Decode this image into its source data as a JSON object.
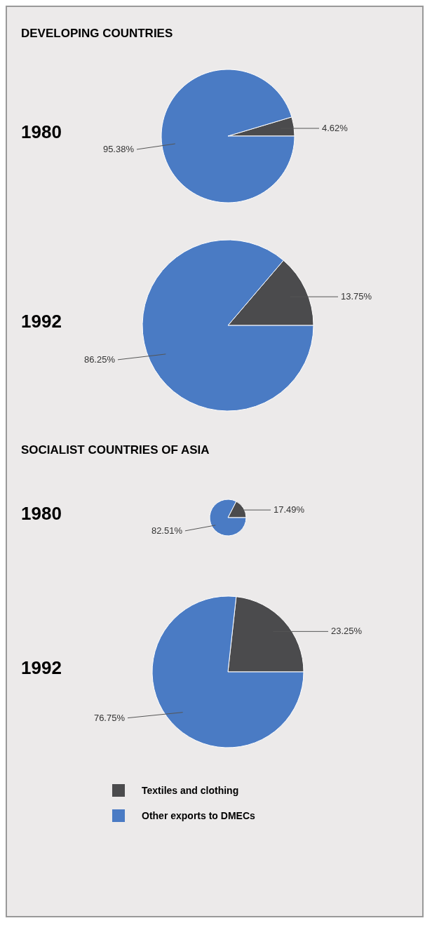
{
  "chart_data": [
    {
      "type": "pie",
      "title": "DEVELOPING COUNTRIES",
      "subtitle": "1980",
      "categories": [
        null,
        null
      ],
      "values": [
        4.62,
        95.38
      ],
      "colors": [
        "#4b4b4d",
        "#4a7bc4"
      ],
      "value_labels": [
        "4.62%",
        "95.38%"
      ],
      "legend": false
    },
    {
      "type": "pie",
      "subtitle": "1992",
      "categories": [
        null,
        null
      ],
      "values": [
        13.75,
        86.25
      ],
      "colors": [
        "#4b4b4d",
        "#4a7bc4"
      ],
      "value_labels": [
        "13.75%",
        "86.25%"
      ],
      "legend": false
    },
    {
      "type": "pie",
      "title": "SOCIALIST COUNTRIES OF ASIA",
      "subtitle": "1980",
      "categories": [
        null,
        null
      ],
      "values": [
        17.49,
        82.51
      ],
      "colors": [
        "#4b4b4d",
        "#4a7bc4"
      ],
      "value_labels": [
        "17.49%",
        "82.51%"
      ],
      "legend": false
    },
    {
      "type": "pie",
      "subtitle": "1992",
      "categories": [
        "Textiles and clothing",
        "Other exports to DMECs"
      ],
      "values": [
        23.25,
        76.75
      ],
      "colors": [
        "#4b4b4d",
        "#4a7bc4"
      ],
      "value_labels": [
        "23.25%",
        "76.75%"
      ],
      "legend": "bottom"
    }
  ]
}
